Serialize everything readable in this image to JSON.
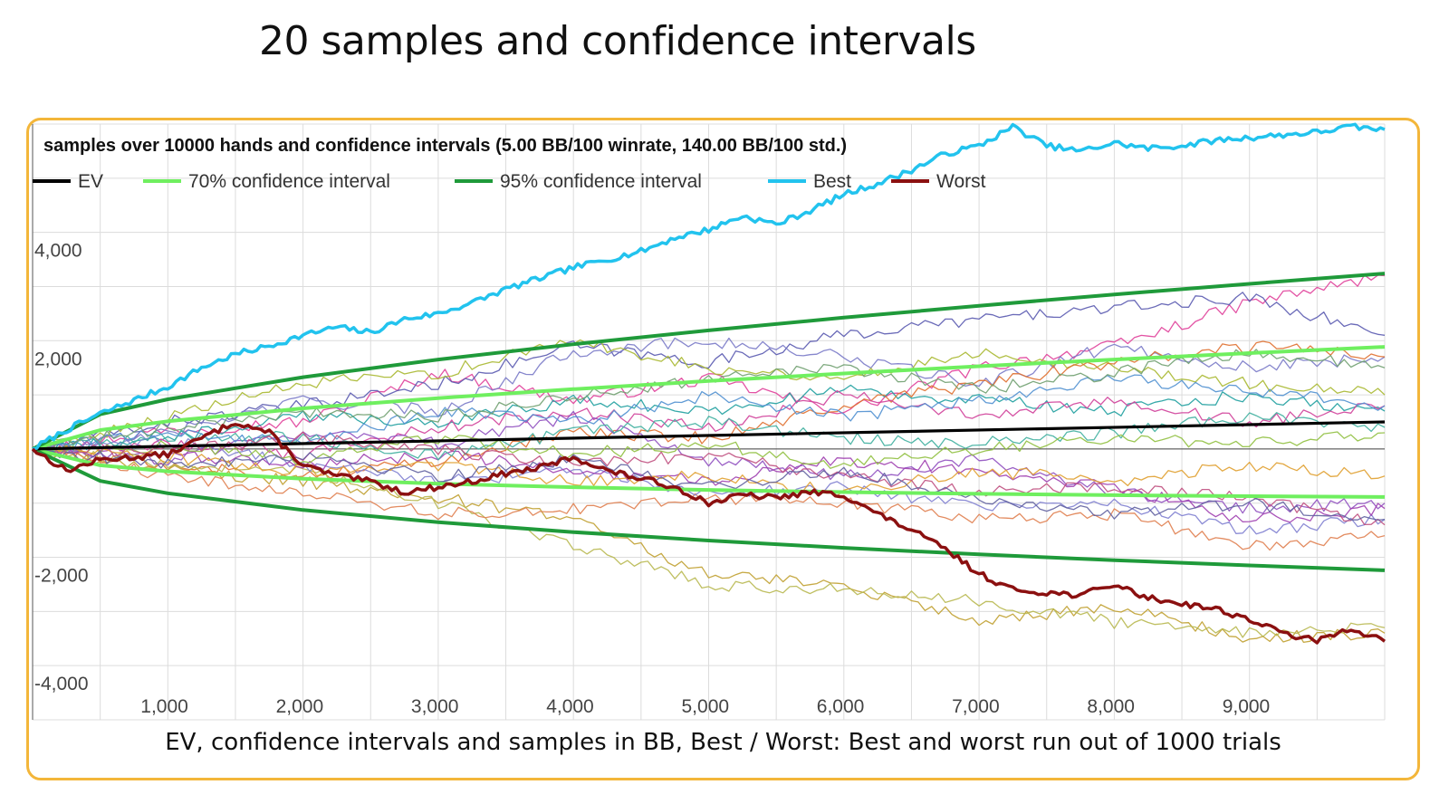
{
  "slide": {
    "title": "20 samples and confidence intervals",
    "caption": "EV, confidence intervals and samples in BB, Best / Worst: Best and worst run out of 1000 trials",
    "frame_color": "#f3b63a"
  },
  "chart_data": {
    "type": "line",
    "title": "samples over 10000 hands and confidence intervals (5.00 BB/100 winrate, 140.00 BB/100 std.)",
    "xlabel": "",
    "ylabel": "",
    "xlim": [
      0,
      10000
    ],
    "ylim": [
      -5000,
      6000
    ],
    "x_ticks": [
      1000,
      2000,
      3000,
      4000,
      5000,
      6000,
      7000,
      8000,
      9000
    ],
    "x_tick_labels": [
      "1,000",
      "2,000",
      "3,000",
      "4,000",
      "5,000",
      "6,000",
      "7,000",
      "8,000",
      "9,000"
    ],
    "y_ticks": [
      4000,
      2000,
      -2000,
      -4000
    ],
    "y_tick_labels": [
      "4,000",
      "2,000",
      "-2,000",
      "-4,000"
    ],
    "grid": true,
    "legend_position": "top-left",
    "winrate_bb_per_100": 5.0,
    "std_bb_per_100": 140.0,
    "legend": [
      {
        "name": "EV",
        "color": "#000000"
      },
      {
        "name": "70% confidence interval",
        "color": "#6fef5f"
      },
      {
        "name": "95% confidence interval",
        "color": "#1f9a3a"
      },
      {
        "name": "Best",
        "color": "#22c3ee"
      },
      {
        "name": "Worst",
        "color": "#8b1010"
      }
    ],
    "series": [
      {
        "name": "EV",
        "role": "ev",
        "color": "#000000",
        "x": [
          0,
          10000
        ],
        "values": [
          0,
          500
        ]
      },
      {
        "name": "95% confidence interval (upper)",
        "role": "ci95",
        "color": "#1f9a3a",
        "x": [
          0,
          500,
          1000,
          2000,
          3000,
          4000,
          5000,
          6000,
          7000,
          8000,
          9000,
          10000
        ],
        "values": [
          0,
          640,
          918,
          1326,
          1652,
          1935,
          2190,
          2425,
          2645,
          2853,
          3050,
          3240
        ]
      },
      {
        "name": "95% confidence interval (lower)",
        "role": "ci95",
        "color": "#1f9a3a",
        "x": [
          0,
          500,
          1000,
          2000,
          3000,
          4000,
          5000,
          6000,
          7000,
          8000,
          9000,
          10000
        ],
        "values": [
          0,
          -590,
          -818,
          -1126,
          -1352,
          -1535,
          -1690,
          -1825,
          -1945,
          -2053,
          -2150,
          -2240
        ]
      },
      {
        "name": "70% confidence interval (upper)",
        "role": "ci70",
        "color": "#6fef5f",
        "x": [
          0,
          500,
          1000,
          2000,
          3000,
          4000,
          5000,
          6000,
          7000,
          8000,
          9000,
          10000
        ],
        "values": [
          0,
          350,
          512,
          750,
          940,
          1105,
          1255,
          1395,
          1528,
          1652,
          1770,
          1886
        ]
      },
      {
        "name": "70% confidence interval (lower)",
        "role": "ci70",
        "color": "#6fef5f",
        "x": [
          0,
          500,
          1000,
          2000,
          3000,
          4000,
          5000,
          6000,
          7000,
          8000,
          9000,
          10000
        ],
        "values": [
          0,
          -300,
          -412,
          -550,
          -640,
          -705,
          -755,
          -795,
          -828,
          -852,
          -870,
          -886
        ]
      },
      {
        "name": "Best",
        "role": "best",
        "color": "#22c3ee",
        "x": [
          0,
          250,
          500,
          750,
          1000,
          1250,
          1500,
          1750,
          2000,
          2250,
          2500,
          2750,
          3000,
          3250,
          3500,
          3750,
          4000,
          4250,
          4500,
          4750,
          5000,
          5250,
          5500,
          5750,
          6000,
          6250,
          6500,
          6750,
          7000,
          7250,
          7500,
          7750,
          8000,
          8250,
          8500,
          8750,
          9000,
          9250,
          9500,
          9750,
          10000
        ],
        "values": [
          0,
          350,
          650,
          900,
          1150,
          1500,
          1750,
          1900,
          2100,
          2250,
          2150,
          2400,
          2500,
          2700,
          2950,
          3150,
          3350,
          3500,
          3650,
          3900,
          4050,
          4300,
          4150,
          4400,
          4700,
          4900,
          5150,
          5450,
          5600,
          5950,
          5600,
          5500,
          5650,
          5550,
          5600,
          5700,
          5750,
          5800,
          5850,
          5950,
          5900
        ]
      },
      {
        "name": "Worst",
        "role": "worst",
        "color": "#8b1010",
        "x": [
          0,
          250,
          500,
          750,
          1000,
          1250,
          1500,
          1750,
          2000,
          2250,
          2500,
          2750,
          3000,
          3250,
          3500,
          3750,
          4000,
          4250,
          4500,
          4750,
          5000,
          5250,
          5500,
          5750,
          6000,
          6250,
          6500,
          6750,
          7000,
          7250,
          7500,
          7750,
          8000,
          8250,
          8500,
          8750,
          9000,
          9250,
          9500,
          9750,
          10000
        ],
        "values": [
          0,
          -400,
          -200,
          -150,
          -100,
          200,
          500,
          300,
          -300,
          -500,
          -600,
          -800,
          -700,
          -600,
          -450,
          -350,
          -150,
          -400,
          -550,
          -700,
          -1000,
          -850,
          -900,
          -800,
          -850,
          -1200,
          -1500,
          -1850,
          -2300,
          -2600,
          -2650,
          -2700,
          -2500,
          -2750,
          -2850,
          -2950,
          -3150,
          -3400,
          -3550,
          -3300,
          -3550
        ]
      },
      {
        "name": "Sample 1",
        "role": "sample",
        "color": "#e0409a",
        "x": [
          0,
          1000,
          2000,
          3000,
          4000,
          5000,
          6000,
          7000,
          8000,
          9000,
          10000
        ],
        "values": [
          0,
          350,
          500,
          1400,
          900,
          1300,
          700,
          1500,
          1900,
          2700,
          3200
        ]
      },
      {
        "name": "Sample 2",
        "role": "sample",
        "color": "#5a5ab0",
        "x": [
          0,
          1000,
          2000,
          3000,
          4000,
          5000,
          6000,
          7000,
          8000,
          9000,
          10000
        ],
        "values": [
          0,
          500,
          800,
          1200,
          1900,
          1600,
          2100,
          2400,
          2600,
          2800,
          2100
        ]
      },
      {
        "name": "Sample 3",
        "role": "sample",
        "color": "#7a7ac8",
        "x": [
          0,
          1000,
          2000,
          3000,
          4000,
          5000,
          6000,
          7000,
          8000,
          9000,
          10000
        ],
        "values": [
          0,
          300,
          900,
          700,
          1800,
          2000,
          1700,
          1200,
          1900,
          1500,
          1700
        ]
      },
      {
        "name": "Sample 4",
        "role": "sample",
        "color": "#a8b830",
        "x": [
          0,
          1000,
          2000,
          3000,
          4000,
          5000,
          6000,
          7000,
          8000,
          9000,
          10000
        ],
        "values": [
          0,
          600,
          1200,
          1400,
          2000,
          1500,
          1300,
          1800,
          1500,
          1200,
          1000
        ]
      },
      {
        "name": "Sample 5",
        "role": "sample",
        "color": "#20a0a0",
        "x": [
          0,
          1000,
          2000,
          3000,
          4000,
          5000,
          6000,
          7000,
          8000,
          9000,
          10000
        ],
        "values": [
          0,
          200,
          600,
          500,
          900,
          700,
          1100,
          900,
          700,
          1000,
          700
        ]
      },
      {
        "name": "Sample 6",
        "role": "sample",
        "color": "#e07030",
        "x": [
          0,
          1000,
          2000,
          3000,
          4000,
          5000,
          6000,
          7000,
          8000,
          9000,
          10000
        ],
        "values": [
          0,
          -300,
          -500,
          -200,
          300,
          200,
          800,
          1200,
          1600,
          1900,
          1700
        ]
      },
      {
        "name": "Sample 7",
        "role": "sample",
        "color": "#d0409a",
        "x": [
          0,
          1000,
          2000,
          3000,
          4000,
          5000,
          6000,
          7000,
          8000,
          9000,
          10000
        ],
        "values": [
          0,
          100,
          -100,
          400,
          700,
          400,
          1000,
          600,
          900,
          500,
          800
        ]
      },
      {
        "name": "Sample 8",
        "role": "sample",
        "color": "#9050c0",
        "x": [
          0,
          1000,
          2000,
          3000,
          4000,
          5000,
          6000,
          7000,
          8000,
          9000,
          10000
        ],
        "values": [
          0,
          -200,
          300,
          100,
          600,
          -200,
          -500,
          -200,
          -800,
          -1100,
          -1000
        ]
      },
      {
        "name": "Sample 9",
        "role": "sample",
        "color": "#c0a030",
        "x": [
          0,
          1000,
          2000,
          3000,
          4000,
          5000,
          6000,
          7000,
          8000,
          9000,
          10000
        ],
        "values": [
          0,
          -400,
          -600,
          -900,
          -1300,
          -2300,
          -2500,
          -3200,
          -2900,
          -3500,
          -3400
        ]
      },
      {
        "name": "Sample 10",
        "role": "sample",
        "color": "#b8b850",
        "x": [
          0,
          1000,
          2000,
          3000,
          4000,
          5000,
          6000,
          7000,
          8000,
          9000,
          10000
        ],
        "values": [
          0,
          -250,
          -400,
          -1000,
          -1800,
          -2500,
          -2600,
          -2800,
          -3200,
          -3400,
          -3300
        ]
      },
      {
        "name": "Sample 11",
        "role": "sample",
        "color": "#e08050",
        "x": [
          0,
          1000,
          2000,
          3000,
          4000,
          5000,
          6000,
          7000,
          8000,
          9000,
          10000
        ],
        "values": [
          0,
          -500,
          -800,
          -1200,
          -1100,
          -900,
          -1000,
          -1300,
          -1200,
          -1800,
          -1600
        ]
      },
      {
        "name": "Sample 12",
        "role": "sample",
        "color": "#8080d0",
        "x": [
          0,
          1000,
          2000,
          3000,
          4000,
          5000,
          6000,
          7000,
          8000,
          9000,
          10000
        ],
        "values": [
          0,
          150,
          -300,
          -600,
          -400,
          -800,
          -700,
          -1100,
          -1000,
          -1500,
          -1300
        ]
      },
      {
        "name": "Sample 13",
        "role": "sample",
        "color": "#a040b0",
        "x": [
          0,
          1000,
          2000,
          3000,
          4000,
          5000,
          6000,
          7000,
          8000,
          9000,
          10000
        ],
        "values": [
          0,
          -100,
          -300,
          -100,
          -400,
          -600,
          -200,
          -400,
          -700,
          -1300,
          -1100
        ]
      },
      {
        "name": "Sample 14",
        "role": "sample",
        "color": "#40b0a0",
        "x": [
          0,
          1000,
          2000,
          3000,
          4000,
          5000,
          6000,
          7000,
          8000,
          9000,
          10000
        ],
        "values": [
          0,
          250,
          200,
          -100,
          300,
          500,
          200,
          100,
          300,
          600,
          400
        ]
      },
      {
        "name": "Sample 15",
        "role": "sample",
        "color": "#90c040",
        "x": [
          0,
          1000,
          2000,
          3000,
          4000,
          5000,
          6000,
          7000,
          8000,
          9000,
          10000
        ],
        "values": [
          0,
          50,
          -200,
          200,
          -100,
          100,
          -300,
          0,
          200,
          100,
          300
        ]
      },
      {
        "name": "Sample 16",
        "role": "sample",
        "color": "#e0a030",
        "x": [
          0,
          1000,
          2000,
          3000,
          4000,
          5000,
          6000,
          7000,
          8000,
          9000,
          10000
        ],
        "values": [
          0,
          -150,
          -400,
          -300,
          -600,
          -500,
          -800,
          -400,
          -600,
          -300,
          -500
        ]
      },
      {
        "name": "Sample 17",
        "role": "sample",
        "color": "#5090d0",
        "x": [
          0,
          1000,
          2000,
          3000,
          4000,
          5000,
          6000,
          7000,
          8000,
          9000,
          10000
        ],
        "values": [
          0,
          300,
          100,
          700,
          500,
          1000,
          600,
          900,
          1300,
          1100,
          800
        ]
      },
      {
        "name": "Sample 18",
        "role": "sample",
        "color": "#c05080",
        "x": [
          0,
          1000,
          2000,
          3000,
          4000,
          5000,
          6000,
          7000,
          8000,
          9000,
          10000
        ],
        "values": [
          0,
          -50,
          200,
          0,
          -300,
          -100,
          -500,
          -800,
          -700,
          -900,
          -1400
        ]
      },
      {
        "name": "Sample 19",
        "role": "sample",
        "color": "#70a070",
        "x": [
          0,
          1000,
          2000,
          3000,
          4000,
          5000,
          6000,
          7000,
          8000,
          9000,
          10000
        ],
        "values": [
          0,
          400,
          700,
          600,
          1000,
          1300,
          1500,
          1100,
          1400,
          1800,
          1500
        ]
      },
      {
        "name": "Sample 20",
        "role": "sample",
        "color": "#6060a0",
        "x": [
          0,
          1000,
          2000,
          3000,
          4000,
          5000,
          6000,
          7000,
          8000,
          9000,
          10000
        ],
        "values": [
          0,
          -300,
          -100,
          -500,
          -200,
          -700,
          -400,
          -900,
          -1200,
          -1000,
          -1300
        ]
      }
    ]
  }
}
